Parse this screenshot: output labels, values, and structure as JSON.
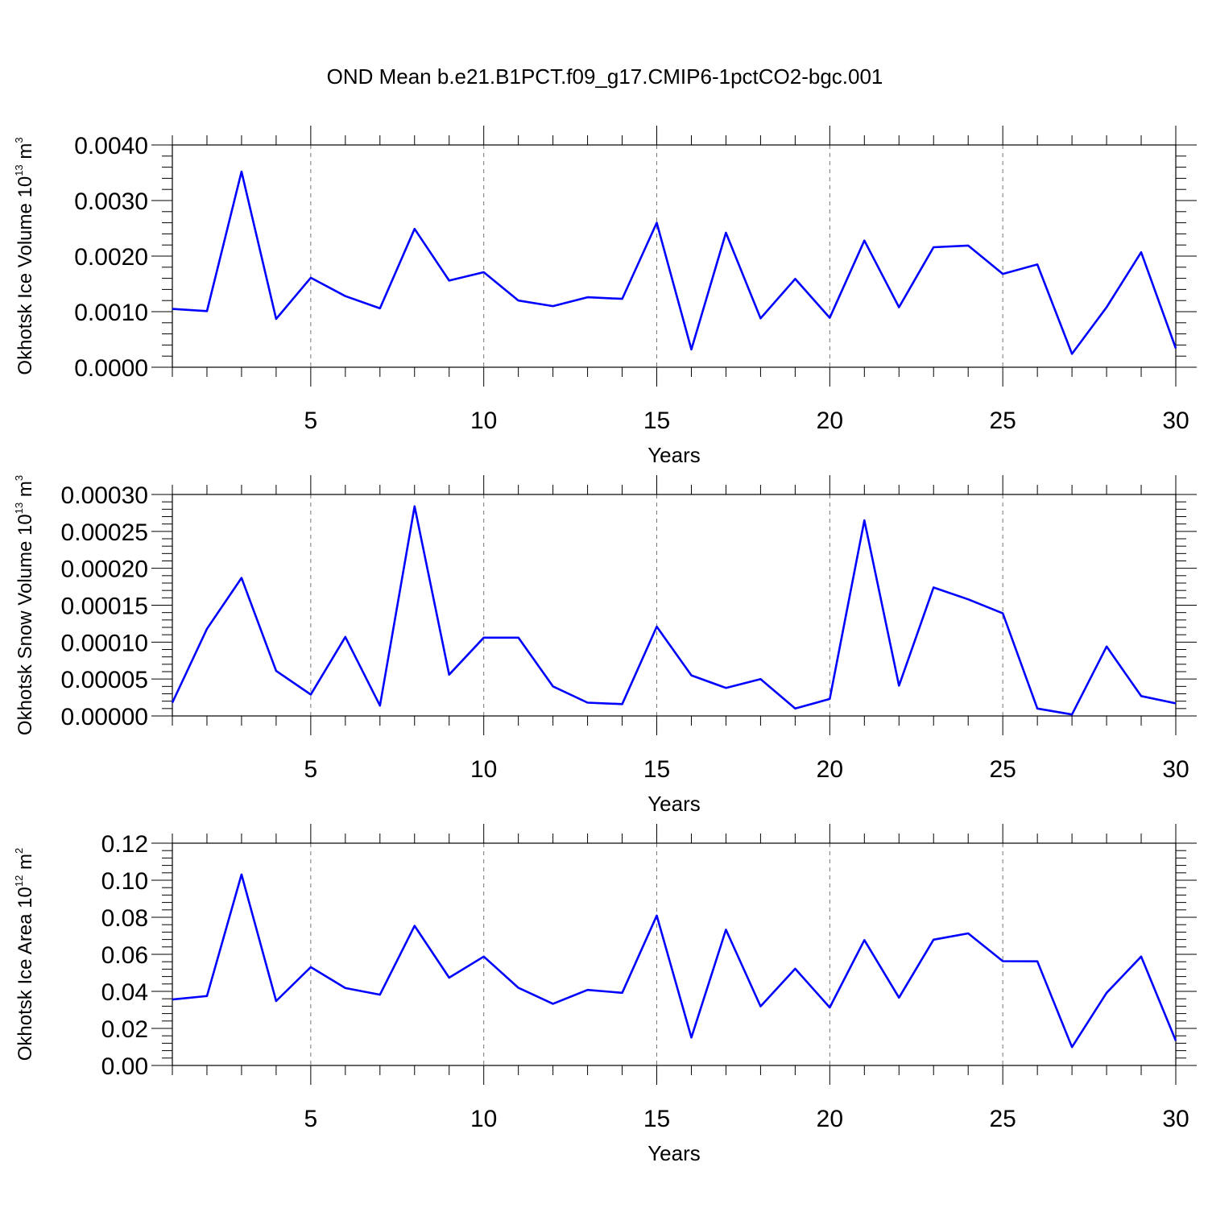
{
  "title": "OND Mean b.e21.B1PCT.f09_g17.CMIP6-1pctCO2-bgc.001",
  "line_color": "#0000ff",
  "chart_data": [
    {
      "type": "line",
      "xlabel": "Years",
      "ylabel": {
        "text": "Okhotsk Ice Volume 10",
        "sup": "13",
        "unit": " m",
        "unit_sup": "3"
      },
      "xlim": [
        1,
        30
      ],
      "ylim": [
        0,
        0.004
      ],
      "xticks": [
        5,
        10,
        15,
        20,
        25,
        30
      ],
      "yticks": [
        0,
        0.001,
        0.002,
        0.003,
        0.004
      ],
      "ytick_labels": [
        "0.0000",
        "0.0010",
        "0.0020",
        "0.0030",
        "0.0040"
      ],
      "x": [
        1,
        2,
        3,
        4,
        5,
        6,
        7,
        8,
        9,
        10,
        11,
        12,
        13,
        14,
        15,
        16,
        17,
        18,
        19,
        20,
        21,
        22,
        23,
        24,
        25,
        26,
        27,
        28,
        29,
        30
      ],
      "values": [
        0.00105,
        0.00101,
        0.00352,
        0.00087,
        0.00161,
        0.00128,
        0.00106,
        0.00249,
        0.00156,
        0.00171,
        0.0012,
        0.0011,
        0.00126,
        0.00123,
        0.0026,
        0.00032,
        0.00242,
        0.00088,
        0.00159,
        0.00089,
        0.00228,
        0.00108,
        0.00216,
        0.00219,
        0.00168,
        0.00185,
        0.00024,
        0.00108,
        0.00207,
        0.00034
      ]
    },
    {
      "type": "line",
      "xlabel": "Years",
      "ylabel": {
        "text": "Okhotsk Snow Volume 10",
        "sup": "13",
        "unit": " m",
        "unit_sup": "3"
      },
      "xlim": [
        1,
        30
      ],
      "ylim": [
        0,
        0.0003
      ],
      "xticks": [
        5,
        10,
        15,
        20,
        25,
        30
      ],
      "yticks": [
        0,
        5e-05,
        0.0001,
        0.00015,
        0.0002,
        0.00025,
        0.0003
      ],
      "ytick_labels": [
        "0.00000",
        "0.00005",
        "0.00010",
        "0.00015",
        "0.00020",
        "0.00025",
        "0.00030"
      ],
      "x": [
        1,
        2,
        3,
        4,
        5,
        6,
        7,
        8,
        9,
        10,
        11,
        12,
        13,
        14,
        15,
        16,
        17,
        18,
        19,
        20,
        21,
        22,
        23,
        24,
        25,
        26,
        27,
        28,
        29,
        30
      ],
      "values": [
        1.8e-05,
        0.000118,
        0.000187,
        6.1e-05,
        2.9e-05,
        0.000107,
        1.4e-05,
        0.000284,
        5.6e-05,
        0.000106,
        0.000106,
        4e-05,
        1.8e-05,
        1.6e-05,
        0.000121,
        5.5e-05,
        3.8e-05,
        5e-05,
        1e-05,
        2.3e-05,
        0.000265,
        4.1e-05,
        0.000174,
        0.000158,
        0.000139,
        1e-05,
        2e-06,
        9.4e-05,
        2.7e-05,
        1.7e-05
      ]
    },
    {
      "type": "line",
      "xlabel": "Years",
      "ylabel": {
        "text": "Okhotsk Ice Area 10",
        "sup": "12",
        "unit": " m",
        "unit_sup": "2"
      },
      "xlim": [
        1,
        30
      ],
      "ylim": [
        0,
        0.12
      ],
      "xticks": [
        5,
        10,
        15,
        20,
        25,
        30
      ],
      "yticks": [
        0,
        0.02,
        0.04,
        0.06,
        0.08,
        0.1,
        0.12
      ],
      "ytick_labels": [
        "0.00",
        "0.02",
        "0.04",
        "0.06",
        "0.08",
        "0.10",
        "0.12"
      ],
      "x": [
        1,
        2,
        3,
        4,
        5,
        6,
        7,
        8,
        9,
        10,
        11,
        12,
        13,
        14,
        15,
        16,
        17,
        18,
        19,
        20,
        21,
        22,
        23,
        24,
        25,
        26,
        27,
        28,
        29,
        30
      ],
      "values": [
        0.0356,
        0.0375,
        0.1031,
        0.0348,
        0.0531,
        0.0418,
        0.0382,
        0.0754,
        0.0474,
        0.0588,
        0.0419,
        0.0333,
        0.0408,
        0.0392,
        0.0809,
        0.0151,
        0.0733,
        0.0319,
        0.0522,
        0.0313,
        0.0677,
        0.0366,
        0.0679,
        0.0713,
        0.0563,
        0.0562,
        0.0099,
        0.0392,
        0.0588,
        0.0134
      ]
    }
  ]
}
